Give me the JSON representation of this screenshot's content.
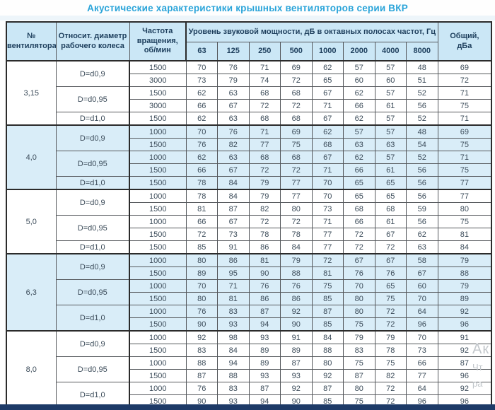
{
  "title": "Акустические характеристики крышных вентиляторов серии ВКР",
  "colors": {
    "title": "#2aa4d9",
    "header_bg": "#cbe7f6",
    "shaded_row_bg": "#d9edf8",
    "border": "#55585c",
    "heavy_border": "#2b2b2b",
    "bottom_bar": "#1d3a67",
    "header_text": "#1d3e5c",
    "cell_text": "#3c4c5a"
  },
  "watermark": {
    "line1": "Ак",
    "line2": "Чт",
    "line3": "ра"
  },
  "table": {
    "headers": {
      "fan_number": "№\nвентилятора",
      "diameter": "Относит. диаметр\nрабочего колеса",
      "speed": "Частота\nвращения,\nоб/мин",
      "sound_power": "Уровень звуковой мощности, дБ в октавных полосах частот, Гц",
      "frequencies": [
        "63",
        "125",
        "250",
        "500",
        "1000",
        "2000",
        "4000",
        "8000"
      ],
      "total": "Общий,\nдБа"
    },
    "groups": [
      {
        "fan": "3,15",
        "shaded": false,
        "diameters": [
          {
            "label": "D=d0,9",
            "rows": [
              {
                "speed": "1500",
                "levels": [
                  70,
                  76,
                  71,
                  69,
                  62,
                  57,
                  57,
                  48
                ],
                "total": 69
              },
              {
                "speed": "3000",
                "levels": [
                  73,
                  79,
                  74,
                  72,
                  65,
                  60,
                  60,
                  51
                ],
                "total": 72
              }
            ]
          },
          {
            "label": "D=d0,95",
            "rows": [
              {
                "speed": "1500",
                "levels": [
                  62,
                  63,
                  68,
                  68,
                  67,
                  62,
                  57,
                  52
                ],
                "total": 71
              },
              {
                "speed": "3000",
                "levels": [
                  66,
                  67,
                  72,
                  72,
                  71,
                  66,
                  61,
                  56
                ],
                "total": 75
              }
            ]
          },
          {
            "label": "D=d1,0",
            "rows": [
              {
                "speed": "1500",
                "levels": [
                  62,
                  63,
                  68,
                  68,
                  67,
                  62,
                  57,
                  52
                ],
                "total": 71
              }
            ]
          }
        ]
      },
      {
        "fan": "4,0",
        "shaded": true,
        "diameters": [
          {
            "label": "D=d0,9",
            "rows": [
              {
                "speed": "1000",
                "levels": [
                  70,
                  76,
                  71,
                  69,
                  62,
                  57,
                  57,
                  48
                ],
                "total": 69
              },
              {
                "speed": "1500",
                "levels": [
                  76,
                  82,
                  77,
                  75,
                  68,
                  63,
                  63,
                  54
                ],
                "total": 75
              }
            ]
          },
          {
            "label": "D=d0,95",
            "rows": [
              {
                "speed": "1000",
                "levels": [
                  62,
                  63,
                  68,
                  68,
                  67,
                  62,
                  57,
                  52
                ],
                "total": 71
              },
              {
                "speed": "1500",
                "levels": [
                  66,
                  67,
                  72,
                  72,
                  71,
                  66,
                  61,
                  56
                ],
                "total": 75
              }
            ]
          },
          {
            "label": "D=d1,0",
            "rows": [
              {
                "speed": "1500",
                "levels": [
                  78,
                  84,
                  79,
                  77,
                  70,
                  65,
                  65,
                  56
                ],
                "total": 77
              }
            ]
          }
        ]
      },
      {
        "fan": "5,0",
        "shaded": false,
        "diameters": [
          {
            "label": "D=d0,9",
            "rows": [
              {
                "speed": "1000",
                "levels": [
                  78,
                  84,
                  79,
                  77,
                  70,
                  65,
                  65,
                  56
                ],
                "total": 77
              },
              {
                "speed": "1500",
                "levels": [
                  81,
                  87,
                  82,
                  80,
                  73,
                  68,
                  68,
                  59
                ],
                "total": 80
              }
            ]
          },
          {
            "label": "D=d0,95",
            "rows": [
              {
                "speed": "1000",
                "levels": [
                  66,
                  67,
                  72,
                  72,
                  71,
                  66,
                  61,
                  56
                ],
                "total": 75
              },
              {
                "speed": "1500",
                "levels": [
                  72,
                  73,
                  78,
                  78,
                  77,
                  72,
                  67,
                  62
                ],
                "total": 81
              }
            ]
          },
          {
            "label": "D=d1,0",
            "rows": [
              {
                "speed": "1500",
                "levels": [
                  85,
                  91,
                  86,
                  84,
                  77,
                  72,
                  72,
                  63
                ],
                "total": 84
              }
            ]
          }
        ]
      },
      {
        "fan": "6,3",
        "shaded": true,
        "diameters": [
          {
            "label": "D=d0,9",
            "rows": [
              {
                "speed": "1000",
                "levels": [
                  80,
                  86,
                  81,
                  79,
                  72,
                  67,
                  67,
                  58
                ],
                "total": 79
              },
              {
                "speed": "1500",
                "levels": [
                  89,
                  95,
                  90,
                  88,
                  81,
                  76,
                  76,
                  67
                ],
                "total": 88
              }
            ]
          },
          {
            "label": "D=d0,95",
            "rows": [
              {
                "speed": "1000",
                "levels": [
                  70,
                  71,
                  76,
                  76,
                  75,
                  70,
                  65,
                  60
                ],
                "total": 79
              },
              {
                "speed": "1500",
                "levels": [
                  80,
                  81,
                  86,
                  86,
                  85,
                  80,
                  75,
                  70
                ],
                "total": 89
              }
            ]
          },
          {
            "label": "D=d1,0",
            "rows": [
              {
                "speed": "1000",
                "levels": [
                  76,
                  83,
                  87,
                  92,
                  87,
                  80,
                  72,
                  64
                ],
                "total": 92
              },
              {
                "speed": "1500",
                "levels": [
                  90,
                  93,
                  94,
                  90,
                  85,
                  75,
                  72,
                  96
                ],
                "total": 96
              }
            ]
          }
        ]
      },
      {
        "fan": "8,0",
        "shaded": false,
        "diameters": [
          {
            "label": "D=d0,9",
            "rows": [
              {
                "speed": "1000",
                "levels": [
                  92,
                  98,
                  93,
                  91,
                  84,
                  79,
                  79,
                  70
                ],
                "total": 91
              },
              {
                "speed": "1500",
                "levels": [
                  83,
                  84,
                  89,
                  89,
                  88,
                  83,
                  78,
                  73
                ],
                "total": 92
              }
            ]
          },
          {
            "label": "D=d0,95",
            "rows": [
              {
                "speed": "1000",
                "levels": [
                  88,
                  94,
                  89,
                  87,
                  80,
                  75,
                  75,
                  66
                ],
                "total": 87
              },
              {
                "speed": "1500",
                "levels": [
                  87,
                  88,
                  93,
                  93,
                  92,
                  87,
                  82,
                  77
                ],
                "total": 96
              }
            ]
          },
          {
            "label": "D=d1,0",
            "rows": [
              {
                "speed": "1000",
                "levels": [
                  76,
                  83,
                  87,
                  92,
                  87,
                  80,
                  72,
                  64
                ],
                "total": 92
              },
              {
                "speed": "1500",
                "levels": [
                  90,
                  93,
                  94,
                  90,
                  85,
                  75,
                  72,
                  96
                ],
                "total": 96
              }
            ]
          }
        ]
      }
    ]
  }
}
